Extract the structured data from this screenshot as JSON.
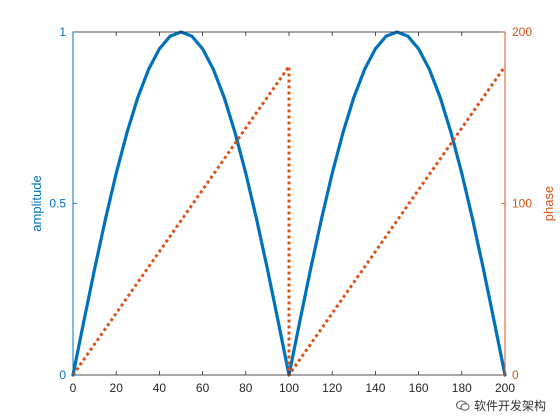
{
  "chart_data": {
    "type": "line",
    "xlim": [
      0,
      200
    ],
    "x_ticks": [
      "0",
      "20",
      "40",
      "60",
      "80",
      "100",
      "120",
      "140",
      "160",
      "180",
      "200"
    ],
    "left_axis": {
      "label": "amplitude",
      "ylim": [
        0,
        1
      ],
      "ticks": [
        "0",
        "0.5",
        "1"
      ],
      "color": "#0072BD"
    },
    "right_axis": {
      "label": "phase",
      "ylim": [
        0,
        200
      ],
      "ticks": [
        "0",
        "100",
        "200"
      ],
      "color": "#D95319"
    },
    "series": [
      {
        "axis": "left",
        "style": "solid",
        "color": "#0072BD",
        "x": [
          0,
          5,
          10,
          15,
          20,
          25,
          30,
          35,
          40,
          45,
          50,
          55,
          60,
          65,
          70,
          75,
          80,
          85,
          90,
          95,
          100,
          105,
          110,
          115,
          120,
          125,
          130,
          135,
          140,
          145,
          150,
          155,
          160,
          165,
          170,
          175,
          180,
          185,
          190,
          195,
          200
        ],
        "y": [
          0,
          0.156,
          0.309,
          0.454,
          0.588,
          0.707,
          0.809,
          0.891,
          0.951,
          0.988,
          1,
          0.988,
          0.951,
          0.891,
          0.809,
          0.707,
          0.588,
          0.454,
          0.309,
          0.156,
          0,
          0.156,
          0.309,
          0.454,
          0.588,
          0.707,
          0.809,
          0.891,
          0.951,
          0.988,
          1,
          0.988,
          0.951,
          0.891,
          0.809,
          0.707,
          0.588,
          0.454,
          0.309,
          0.156,
          0
        ]
      },
      {
        "axis": "right",
        "style": "dotted",
        "color": "#D95319",
        "x": [
          0,
          100,
          100,
          200
        ],
        "y": [
          0,
          180,
          0,
          180
        ]
      }
    ],
    "grid": false,
    "box": true
  },
  "watermark": {
    "text": "软件开发架构",
    "icon": "wechat-icon"
  }
}
